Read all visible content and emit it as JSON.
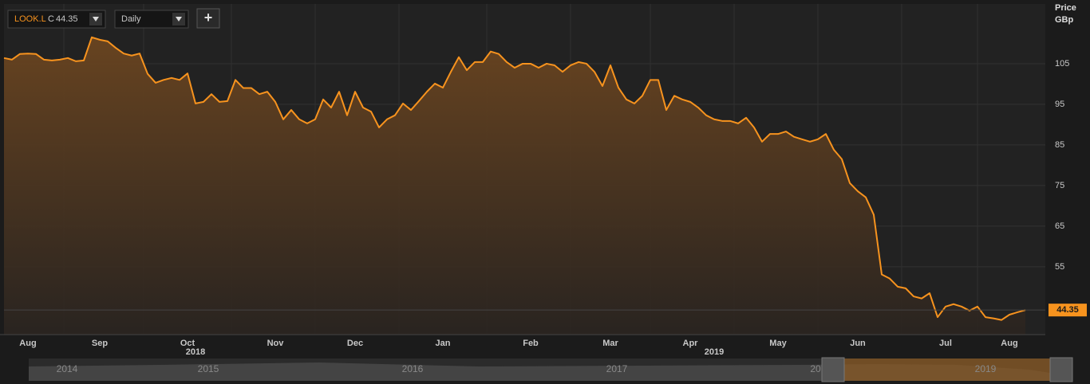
{
  "toolbar": {
    "symbol": "LOOK.L",
    "close_prefix": "C",
    "interval": "Daily",
    "add_button": "+"
  },
  "chart_data": {
    "type": "line",
    "axis_title": "Price",
    "axis_unit": "GBp",
    "color": "#f7931e",
    "categories": [
      null,
      null,
      null,
      "Aug",
      null,
      null,
      null,
      null,
      null,
      null,
      null,
      null,
      "Sep",
      null,
      null,
      null,
      null,
      null,
      null,
      null,
      null,
      null,
      null,
      "Oct",
      null,
      null,
      null,
      null,
      null,
      null,
      null,
      null,
      null,
      null,
      "Nov",
      null,
      null,
      null,
      null,
      null,
      null,
      null,
      null,
      null,
      "Dec",
      null,
      null,
      null,
      null,
      null,
      null,
      null,
      null,
      null,
      null,
      "Jan",
      null,
      null,
      null,
      null,
      null,
      null,
      null,
      null,
      null,
      null,
      "Feb",
      null,
      null,
      null,
      null,
      null,
      null,
      null,
      null,
      null,
      "Mar",
      null,
      null,
      null,
      null,
      null,
      null,
      null,
      null,
      null,
      "Apr",
      null,
      null,
      null,
      null,
      null,
      null,
      null,
      null,
      null,
      null,
      "May",
      null,
      null,
      null,
      null,
      null,
      null,
      null,
      null,
      null,
      "Jun",
      null,
      null,
      null,
      null,
      null,
      null,
      null,
      null,
      null,
      null,
      "Jul",
      null,
      null,
      null,
      null,
      null,
      null,
      null,
      "Aug",
      null,
      null
    ],
    "category_years": [
      null,
      null,
      null,
      null,
      null,
      null,
      null,
      null,
      null,
      null,
      null,
      null,
      null,
      null,
      null,
      null,
      null,
      null,
      null,
      null,
      null,
      null,
      null,
      null,
      "2018",
      null,
      null,
      null,
      null,
      null,
      null,
      null,
      null,
      null,
      null,
      null,
      null,
      null,
      null,
      null,
      null,
      null,
      null,
      null,
      null,
      null,
      null,
      null,
      null,
      null,
      null,
      null,
      null,
      null,
      null,
      null,
      null,
      null,
      null,
      null,
      null,
      null,
      null,
      null,
      null,
      null,
      null,
      null,
      null,
      null,
      null,
      null,
      null,
      null,
      null,
      null,
      null,
      null,
      null,
      null,
      null,
      null,
      null,
      null,
      null,
      null,
      null,
      null,
      null,
      "2019",
      null,
      null,
      null,
      null,
      null,
      null,
      null,
      null,
      null,
      null,
      null,
      null,
      null,
      null,
      null,
      null,
      null,
      null,
      null,
      null,
      null,
      null,
      null,
      null,
      null,
      null,
      null,
      null,
      null,
      null,
      null,
      null,
      null,
      null,
      null,
      null,
      null,
      null,
      null
    ],
    "values": [
      106.4,
      106,
      107.4,
      107.5,
      107.4,
      106,
      105.8,
      106,
      106.4,
      105.6,
      105.8,
      111.5,
      110.9,
      110.5,
      108.9,
      107.5,
      107,
      107.5,
      102.5,
      100.3,
      101,
      101.5,
      101,
      102.6,
      95.2,
      95.6,
      97.5,
      95.6,
      95.8,
      101,
      99,
      99,
      97.5,
      98.1,
      95.6,
      91.3,
      93.6,
      91.3,
      90.3,
      91.3,
      96.2,
      94.2,
      98.1,
      92.3,
      98.1,
      94.2,
      93.2,
      89.3,
      91.3,
      92.3,
      95.2,
      93.6,
      95.8,
      98.1,
      100.1,
      99.1,
      103,
      106.6,
      103.4,
      105.4,
      105.4,
      108,
      107.4,
      105.4,
      104,
      105,
      105,
      104,
      105,
      104.6,
      103,
      104.6,
      105.4,
      105,
      103,
      99.5,
      104.6,
      99.1,
      96.2,
      95.2,
      97.1,
      101,
      101,
      93.6,
      97.1,
      96.2,
      95.6,
      94.2,
      92.3,
      91.3,
      90.9,
      90.9,
      90.3,
      91.7,
      89.3,
      85.8,
      87.7,
      87.7,
      88.3,
      87,
      86.4,
      85.8,
      86.4,
      87.7,
      83.8,
      81.5,
      75.6,
      73.6,
      72.1,
      67.8,
      53.1,
      52.1,
      50.1,
      49.7,
      47.7,
      47.2,
      48.5,
      42.6,
      45.2,
      45.8,
      45.2,
      44.2,
      45.2,
      42.6,
      42.3,
      41.9,
      43.2,
      43.8,
      44.35
    ],
    "ylim": [
      38.3,
      119.7
    ],
    "yticks": [
      55,
      65,
      75,
      85,
      95,
      105
    ],
    "grid": true
  },
  "navigator": {
    "labels": [
      "2014",
      "2015",
      "2016",
      "2017",
      "20",
      "2019"
    ]
  }
}
